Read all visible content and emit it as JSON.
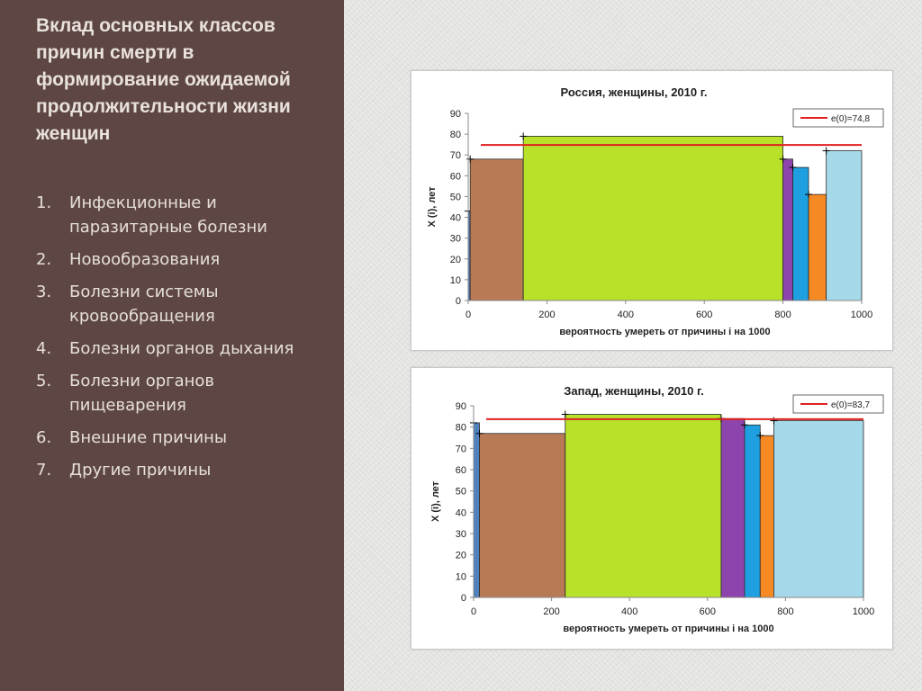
{
  "slide": {
    "title": "Вклад основных классов причин смерти в формирование ожидаемой продолжительности жизни женщин",
    "causes": [
      {
        "num": "1.",
        "label": "Инфекционные и паразитарные болезни"
      },
      {
        "num": "2.",
        "label": "Новообразования"
      },
      {
        "num": "3.",
        "label": "Болезни системы кровообращения"
      },
      {
        "num": "4.",
        "label": "Болезни органов дыхания"
      },
      {
        "num": "5.",
        "label": "Болезни органов пищеварения"
      },
      {
        "num": "6.",
        "label": "Внешние причины"
      },
      {
        "num": "7.",
        "label": "Другие причины"
      }
    ]
  },
  "chart_data": [
    {
      "type": "bar",
      "title": "Россия, женщины, 2010 г.",
      "xlabel": "вероятность умереть от причины  i на 1000",
      "ylabel": "X (i), лет",
      "xlim": [
        0,
        1000
      ],
      "ylim": [
        0,
        90
      ],
      "xticks": [
        "0",
        "200",
        "400",
        "600",
        "800",
        "1000"
      ],
      "yticks": [
        "0",
        "10",
        "20",
        "30",
        "40",
        "50",
        "60",
        "70",
        "80",
        "90"
      ],
      "grid": false,
      "legend": "top-right",
      "reference_line": {
        "label": "e(0)=74,8",
        "value": 74.8,
        "color": "#e02020"
      },
      "bars": [
        {
          "x0": 0,
          "x1": 5,
          "value": 43,
          "color": "#4f81bd"
        },
        {
          "x0": 5,
          "x1": 140,
          "value": 68,
          "color": "#b87a55"
        },
        {
          "x0": 140,
          "x1": 800,
          "value": 79,
          "color": "#b8e12a"
        },
        {
          "x0": 800,
          "x1": 825,
          "value": 68,
          "color": "#8e44ad"
        },
        {
          "x0": 825,
          "x1": 865,
          "value": 64,
          "color": "#1e9fe0"
        },
        {
          "x0": 865,
          "x1": 910,
          "value": 51,
          "color": "#f58a25"
        },
        {
          "x0": 910,
          "x1": 1000,
          "value": 72,
          "color": "#a5d9ea"
        }
      ]
    },
    {
      "type": "bar",
      "title": "Запад, женщины, 2010 г.",
      "xlabel": "вероятность умереть от причины  i на 1000",
      "ylabel": "X (i), лет",
      "xlim": [
        0,
        1000
      ],
      "ylim": [
        0,
        90
      ],
      "xticks": [
        "0",
        "200",
        "400",
        "600",
        "800",
        "1000"
      ],
      "yticks": [
        "0",
        "10",
        "20",
        "30",
        "40",
        "50",
        "60",
        "70",
        "80",
        "90"
      ],
      "grid": false,
      "legend": "top-right",
      "reference_line": {
        "label": "e(0)=83,7",
        "value": 83.7,
        "color": "#e02020"
      },
      "bars": [
        {
          "x0": 0,
          "x1": 15,
          "value": 82,
          "color": "#4f81bd"
        },
        {
          "x0": 15,
          "x1": 235,
          "value": 77,
          "color": "#b87a55"
        },
        {
          "x0": 235,
          "x1": 635,
          "value": 86,
          "color": "#b8e12a"
        },
        {
          "x0": 635,
          "x1": 695,
          "value": 84,
          "color": "#8e44ad"
        },
        {
          "x0": 695,
          "x1": 735,
          "value": 81,
          "color": "#1e9fe0"
        },
        {
          "x0": 735,
          "x1": 770,
          "value": 76,
          "color": "#f58a25"
        },
        {
          "x0": 770,
          "x1": 1000,
          "value": 83,
          "color": "#a5d9ea"
        }
      ]
    }
  ]
}
